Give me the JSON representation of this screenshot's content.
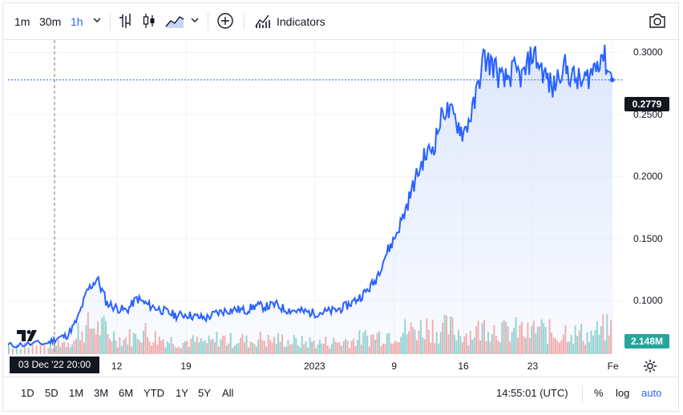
{
  "toolbar": {
    "intervals": [
      "1m",
      "30m",
      "1h"
    ],
    "active_interval": "1h",
    "indicators_label": "Indicators",
    "icons": [
      "chevron-down-icon",
      "bar-chart-icon",
      "candlestick-icon",
      "area-chart-icon",
      "chevron-down-icon",
      "plus-circle-icon",
      "indicators-icon",
      "camera-icon"
    ]
  },
  "bottom": {
    "ranges": [
      "1D",
      "5D",
      "1M",
      "3M",
      "6M",
      "YTD",
      "1Y",
      "5Y",
      "All"
    ],
    "time": "14:55:01 (UTC)",
    "percent": "%",
    "log": "log",
    "auto": "auto",
    "active_scale": "auto"
  },
  "price_tag": "0.2779",
  "volume_tag": "2.148M",
  "crosshair_time": "03 Dec '22  20:00",
  "logo": "TV",
  "colors": {
    "line": "#2962ff",
    "area": "#dbe5fb",
    "vol_up": "#26a69a",
    "vol_down": "#ef5350",
    "price_tag": "#131722",
    "volume_tag": "#26a69a"
  },
  "chart_data": {
    "type": "area",
    "series": [
      {
        "x": [
          "2022-12-01",
          "2022-12-03",
          "2022-12-05",
          "2022-12-06",
          "2022-12-07",
          "2022-12-08",
          "2022-12-09",
          "2022-12-10",
          "2022-12-11",
          "2022-12-12",
          "2022-12-13",
          "2022-12-14",
          "2022-12-15",
          "2022-12-16",
          "2022-12-17",
          "2022-12-18",
          "2022-12-19",
          "2022-12-20",
          "2022-12-21",
          "2022-12-22",
          "2022-12-23",
          "2022-12-24",
          "2022-12-25",
          "2022-12-26",
          "2022-12-27",
          "2022-12-28",
          "2022-12-29",
          "2022-12-30",
          "2022-12-31",
          "2023-01-01",
          "2023-01-02",
          "2023-01-03",
          "2023-01-04",
          "2023-01-05",
          "2023-01-06",
          "2023-01-07",
          "2023-01-08",
          "2023-01-09",
          "2023-01-10",
          "2023-01-11",
          "2023-01-12",
          "2023-01-13",
          "2023-01-14",
          "2023-01-15",
          "2023-01-16",
          "2023-01-17",
          "2023-01-18",
          "2023-01-19",
          "2023-01-20",
          "2023-01-21",
          "2023-01-22",
          "2023-01-23",
          "2023-01-24",
          "2023-01-25",
          "2023-01-26",
          "2023-01-27",
          "2023-01-28",
          "2023-01-29",
          "2023-01-30",
          "2023-01-31"
        ],
        "y": [
          0.064,
          0.065,
          0.066,
          0.07,
          0.072,
          0.085,
          0.108,
          0.118,
          0.098,
          0.094,
          0.092,
          0.102,
          0.097,
          0.094,
          0.091,
          0.088,
          0.089,
          0.087,
          0.086,
          0.09,
          0.092,
          0.093,
          0.092,
          0.096,
          0.095,
          0.097,
          0.093,
          0.092,
          0.091,
          0.09,
          0.091,
          0.092,
          0.095,
          0.1,
          0.106,
          0.115,
          0.135,
          0.15,
          0.17,
          0.195,
          0.215,
          0.225,
          0.255,
          0.248,
          0.235,
          0.255,
          0.295,
          0.29,
          0.275,
          0.285,
          0.28,
          0.3,
          0.285,
          0.27,
          0.29,
          0.28,
          0.275,
          0.285,
          0.3,
          0.278
        ]
      }
    ],
    "volume": [
      12,
      10,
      11,
      14,
      16,
      28,
      32,
      30,
      22,
      18,
      20,
      26,
      20,
      18,
      16,
      14,
      15,
      14,
      14,
      18,
      16,
      17,
      15,
      18,
      16,
      17,
      15,
      14,
      14,
      13,
      14,
      14,
      16,
      18,
      20,
      22,
      24,
      26,
      28,
      30,
      32,
      28,
      30,
      26,
      24,
      28,
      34,
      30,
      26,
      28,
      24,
      30,
      26,
      22,
      28,
      24,
      22,
      26,
      30,
      32
    ],
    "x_ticks": [
      "12",
      "19",
      "2023",
      "9",
      "16",
      "23",
      "Fe"
    ],
    "y_ticks": [
      "0.1000",
      "0.1500",
      "0.2000",
      "0.2500",
      "0.3000"
    ],
    "ylim": [
      0.057,
      0.31
    ],
    "last_price": 0.2779,
    "grid": true
  }
}
